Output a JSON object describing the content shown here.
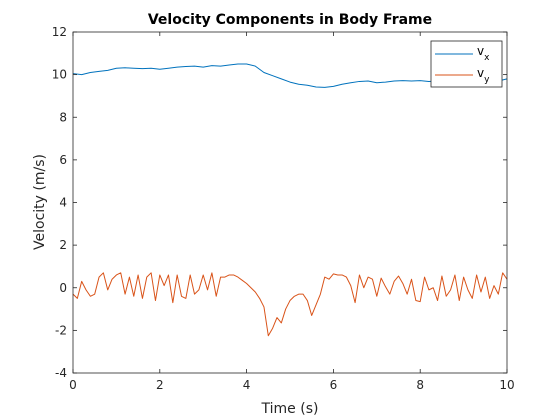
{
  "chart_data": {
    "type": "line",
    "title": "Velocity Components in Body Frame",
    "xlabel": "Time (s)",
    "ylabel": "Velocity (m/s)",
    "xlim": [
      0,
      10
    ],
    "ylim": [
      -4,
      12
    ],
    "xticks": [
      "0",
      "2",
      "4",
      "6",
      "8",
      "10"
    ],
    "yticks": [
      "-4",
      "-2",
      "0",
      "2",
      "4",
      "6",
      "8",
      "10",
      "12"
    ],
    "grid": false,
    "legend_position": "top-right",
    "series": [
      {
        "name": "v",
        "name_subscript": "x",
        "color": "#0072BD",
        "x": [
          0,
          0.2,
          0.4,
          0.6,
          0.8,
          1.0,
          1.2,
          1.4,
          1.6,
          1.8,
          2.0,
          2.2,
          2.4,
          2.6,
          2.8,
          3.0,
          3.2,
          3.4,
          3.6,
          3.8,
          4.0,
          4.2,
          4.4,
          4.6,
          4.8,
          5.0,
          5.2,
          5.4,
          5.6,
          5.8,
          6.0,
          6.2,
          6.4,
          6.6,
          6.8,
          7.0,
          7.2,
          7.4,
          7.6,
          7.8,
          8.0,
          8.2,
          8.4,
          8.6,
          8.8,
          9.0,
          9.2,
          9.4,
          9.6,
          9.8,
          10.0
        ],
        "y": [
          10.05,
          10.0,
          10.1,
          10.15,
          10.2,
          10.3,
          10.32,
          10.3,
          10.28,
          10.3,
          10.25,
          10.3,
          10.35,
          10.38,
          10.4,
          10.35,
          10.42,
          10.4,
          10.45,
          10.5,
          10.5,
          10.4,
          10.1,
          9.95,
          9.8,
          9.65,
          9.55,
          9.5,
          9.42,
          9.4,
          9.45,
          9.55,
          9.62,
          9.68,
          9.7,
          9.62,
          9.65,
          9.7,
          9.72,
          9.7,
          9.72,
          9.68,
          9.7,
          9.74,
          9.72,
          9.75,
          9.7,
          9.68,
          9.72,
          9.7,
          9.8
        ]
      },
      {
        "name": "v",
        "name_subscript": "y",
        "color": "#D95319",
        "x": [
          0,
          0.1,
          0.2,
          0.3,
          0.4,
          0.5,
          0.6,
          0.7,
          0.8,
          0.9,
          1.0,
          1.1,
          1.2,
          1.3,
          1.4,
          1.5,
          1.6,
          1.7,
          1.8,
          1.9,
          2.0,
          2.1,
          2.2,
          2.3,
          2.4,
          2.5,
          2.6,
          2.7,
          2.8,
          2.9,
          3.0,
          3.1,
          3.2,
          3.3,
          3.4,
          3.5,
          3.6,
          3.7,
          3.8,
          3.9,
          4.0,
          4.1,
          4.2,
          4.3,
          4.4,
          4.5,
          4.6,
          4.7,
          4.8,
          4.9,
          5.0,
          5.1,
          5.2,
          5.3,
          5.4,
          5.5,
          5.6,
          5.7,
          5.8,
          5.9,
          6.0,
          6.1,
          6.2,
          6.3,
          6.4,
          6.5,
          6.6,
          6.7,
          6.8,
          6.9,
          7.0,
          7.1,
          7.2,
          7.3,
          7.4,
          7.5,
          7.6,
          7.7,
          7.8,
          7.9,
          8.0,
          8.1,
          8.2,
          8.3,
          8.4,
          8.5,
          8.6,
          8.7,
          8.8,
          8.9,
          9.0,
          9.1,
          9.2,
          9.3,
          9.4,
          9.5,
          9.6,
          9.7,
          9.8,
          9.9,
          10.0
        ],
        "y": [
          -0.3,
          -0.5,
          0.3,
          -0.1,
          -0.4,
          -0.3,
          0.5,
          0.7,
          -0.1,
          0.4,
          0.6,
          0.7,
          -0.3,
          0.5,
          -0.4,
          0.6,
          -0.5,
          0.5,
          0.7,
          -0.6,
          0.6,
          0.1,
          0.6,
          -0.7,
          0.6,
          -0.4,
          -0.5,
          0.6,
          -0.3,
          -0.1,
          0.6,
          -0.1,
          0.7,
          -0.4,
          0.5,
          0.5,
          0.6,
          0.6,
          0.5,
          0.35,
          0.2,
          0.0,
          -0.2,
          -0.5,
          -0.9,
          -2.25,
          -1.9,
          -1.4,
          -1.65,
          -1.0,
          -0.6,
          -0.4,
          -0.3,
          -0.3,
          -0.6,
          -1.3,
          -0.8,
          -0.3,
          0.5,
          0.4,
          0.65,
          0.6,
          0.6,
          0.5,
          0.1,
          -0.7,
          0.6,
          0.0,
          0.5,
          0.4,
          -0.4,
          0.45,
          0.05,
          -0.3,
          0.3,
          0.55,
          0.2,
          -0.3,
          0.4,
          -0.6,
          -0.65,
          0.5,
          -0.1,
          0.0,
          -0.6,
          0.55,
          -0.4,
          -0.1,
          0.6,
          -0.6,
          0.5,
          -0.1,
          -0.5,
          0.6,
          -0.2,
          0.5,
          -0.5,
          0.1,
          -0.3,
          0.7,
          0.4
        ]
      }
    ]
  }
}
